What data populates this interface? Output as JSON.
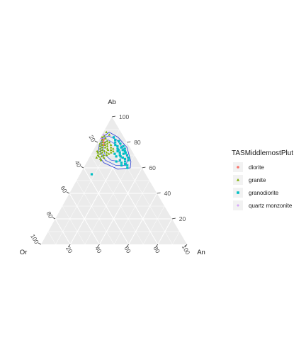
{
  "chart_data": {
    "type": "ternary-scatter",
    "axes": {
      "top": {
        "label": "Ab",
        "ticks": [
          "100",
          "80",
          "60",
          "40",
          "20"
        ]
      },
      "left": {
        "label": "Or",
        "ticks": [
          "20",
          "40",
          "60",
          "80",
          "100"
        ]
      },
      "right": {
        "label": "An",
        "ticks": [
          "20",
          "40",
          "60",
          "80",
          "100"
        ]
      }
    },
    "grid": true,
    "legend": {
      "title": "TASMiddlemostPlut",
      "placement": "right",
      "entries": [
        {
          "label": "diorite",
          "color": "#f8766d",
          "shape": "circle"
        },
        {
          "label": "granite",
          "color": "#7cae00",
          "shape": "triangle"
        },
        {
          "label": "granodiorite",
          "color": "#00bfc4",
          "shape": "square"
        },
        {
          "label": "quartz monzonite",
          "color": "#c77cff",
          "shape": "plus"
        }
      ]
    },
    "series": [
      {
        "name": "diorite",
        "points": [
          [
            0.8,
            0.04
          ],
          [
            0.78,
            0.05
          ],
          [
            0.82,
            0.03
          ]
        ]
      },
      {
        "name": "granite",
        "points": [
          [
            0.84,
            0.01
          ],
          [
            0.82,
            0.02
          ],
          [
            0.8,
            0.03
          ],
          [
            0.79,
            0.02
          ],
          [
            0.78,
            0.04
          ],
          [
            0.8,
            0.05
          ],
          [
            0.77,
            0.03
          ],
          [
            0.76,
            0.05
          ],
          [
            0.75,
            0.04
          ],
          [
            0.78,
            0.06
          ],
          [
            0.76,
            0.07
          ],
          [
            0.74,
            0.06
          ],
          [
            0.73,
            0.05
          ],
          [
            0.77,
            0.08
          ],
          [
            0.75,
            0.09
          ],
          [
            0.73,
            0.08
          ],
          [
            0.72,
            0.07
          ],
          [
            0.71,
            0.06
          ],
          [
            0.74,
            0.1
          ],
          [
            0.72,
            0.1
          ],
          [
            0.7,
            0.09
          ],
          [
            0.69,
            0.08
          ],
          [
            0.71,
            0.12
          ],
          [
            0.7,
            0.11
          ],
          [
            0.68,
            0.1
          ],
          [
            0.73,
            0.03
          ],
          [
            0.72,
            0.04
          ],
          [
            0.7,
            0.05
          ],
          [
            0.69,
            0.06
          ],
          [
            0.81,
            0.06
          ],
          [
            0.79,
            0.07
          ],
          [
            0.83,
            0.04
          ],
          [
            0.85,
            0.02
          ],
          [
            0.76,
            0.11
          ],
          [
            0.74,
            0.12
          ],
          [
            0.72,
            0.13
          ],
          [
            0.67,
            0.08
          ],
          [
            0.66,
            0.09
          ],
          [
            0.88,
            0.02
          ],
          [
            0.86,
            0.05
          ],
          [
            0.68,
            0.05
          ],
          [
            0.78,
            0.1
          ],
          [
            0.8,
            0.08
          ],
          [
            0.75,
            0.13
          ],
          [
            0.73,
            0.14
          ]
        ]
      },
      {
        "name": "granodiorite",
        "points": [
          [
            0.8,
            0.12
          ],
          [
            0.78,
            0.13
          ],
          [
            0.77,
            0.15
          ],
          [
            0.75,
            0.16
          ],
          [
            0.73,
            0.17
          ],
          [
            0.72,
            0.19
          ],
          [
            0.7,
            0.2
          ],
          [
            0.71,
            0.22
          ],
          [
            0.69,
            0.21
          ],
          [
            0.68,
            0.23
          ],
          [
            0.66,
            0.22
          ],
          [
            0.67,
            0.25
          ],
          [
            0.65,
            0.26
          ],
          [
            0.64,
            0.24
          ],
          [
            0.63,
            0.27
          ],
          [
            0.62,
            0.29
          ],
          [
            0.74,
            0.2
          ],
          [
            0.76,
            0.18
          ],
          [
            0.79,
            0.16
          ],
          [
            0.81,
            0.14
          ],
          [
            0.7,
            0.25
          ],
          [
            0.68,
            0.27
          ],
          [
            0.72,
            0.23
          ],
          [
            0.74,
            0.17
          ],
          [
            0.66,
            0.28
          ],
          [
            0.6,
            0.3
          ],
          [
            0.62,
            0.25
          ],
          [
            0.73,
            0.22
          ],
          [
            0.77,
            0.19
          ],
          [
            0.69,
            0.18
          ],
          [
            0.71,
            0.16
          ],
          [
            0.65,
            0.2
          ],
          [
            0.55,
            0.08
          ],
          [
            0.84,
            0.09
          ],
          [
            0.82,
            0.11
          ],
          [
            0.75,
            0.21
          ]
        ]
      },
      {
        "name": "quartz monzonite",
        "points": [
          [
            0.86,
            0.01
          ],
          [
            0.83,
            0.01
          ]
        ]
      }
    ],
    "contours": [
      {
        "color": "#3c4fd6",
        "points": [
          [
            0.88,
            0.04
          ],
          [
            0.84,
            0.12
          ],
          [
            0.76,
            0.22
          ],
          [
            0.65,
            0.3
          ],
          [
            0.6,
            0.32
          ],
          [
            0.59,
            0.24
          ],
          [
            0.64,
            0.12
          ],
          [
            0.7,
            0.05
          ],
          [
            0.78,
            0.02
          ],
          [
            0.85,
            0.02
          ]
        ]
      },
      {
        "color": "#4a62e0",
        "points": [
          [
            0.85,
            0.05
          ],
          [
            0.82,
            0.12
          ],
          [
            0.75,
            0.2
          ],
          [
            0.67,
            0.27
          ],
          [
            0.62,
            0.28
          ],
          [
            0.62,
            0.21
          ],
          [
            0.66,
            0.12
          ],
          [
            0.72,
            0.06
          ],
          [
            0.79,
            0.03
          ],
          [
            0.84,
            0.03
          ]
        ]
      },
      {
        "color": "#5b74e6",
        "points": [
          [
            0.82,
            0.06
          ],
          [
            0.79,
            0.12
          ],
          [
            0.74,
            0.18
          ],
          [
            0.68,
            0.22
          ],
          [
            0.65,
            0.22
          ],
          [
            0.66,
            0.16
          ],
          [
            0.7,
            0.1
          ],
          [
            0.75,
            0.06
          ],
          [
            0.8,
            0.05
          ]
        ]
      }
    ]
  }
}
